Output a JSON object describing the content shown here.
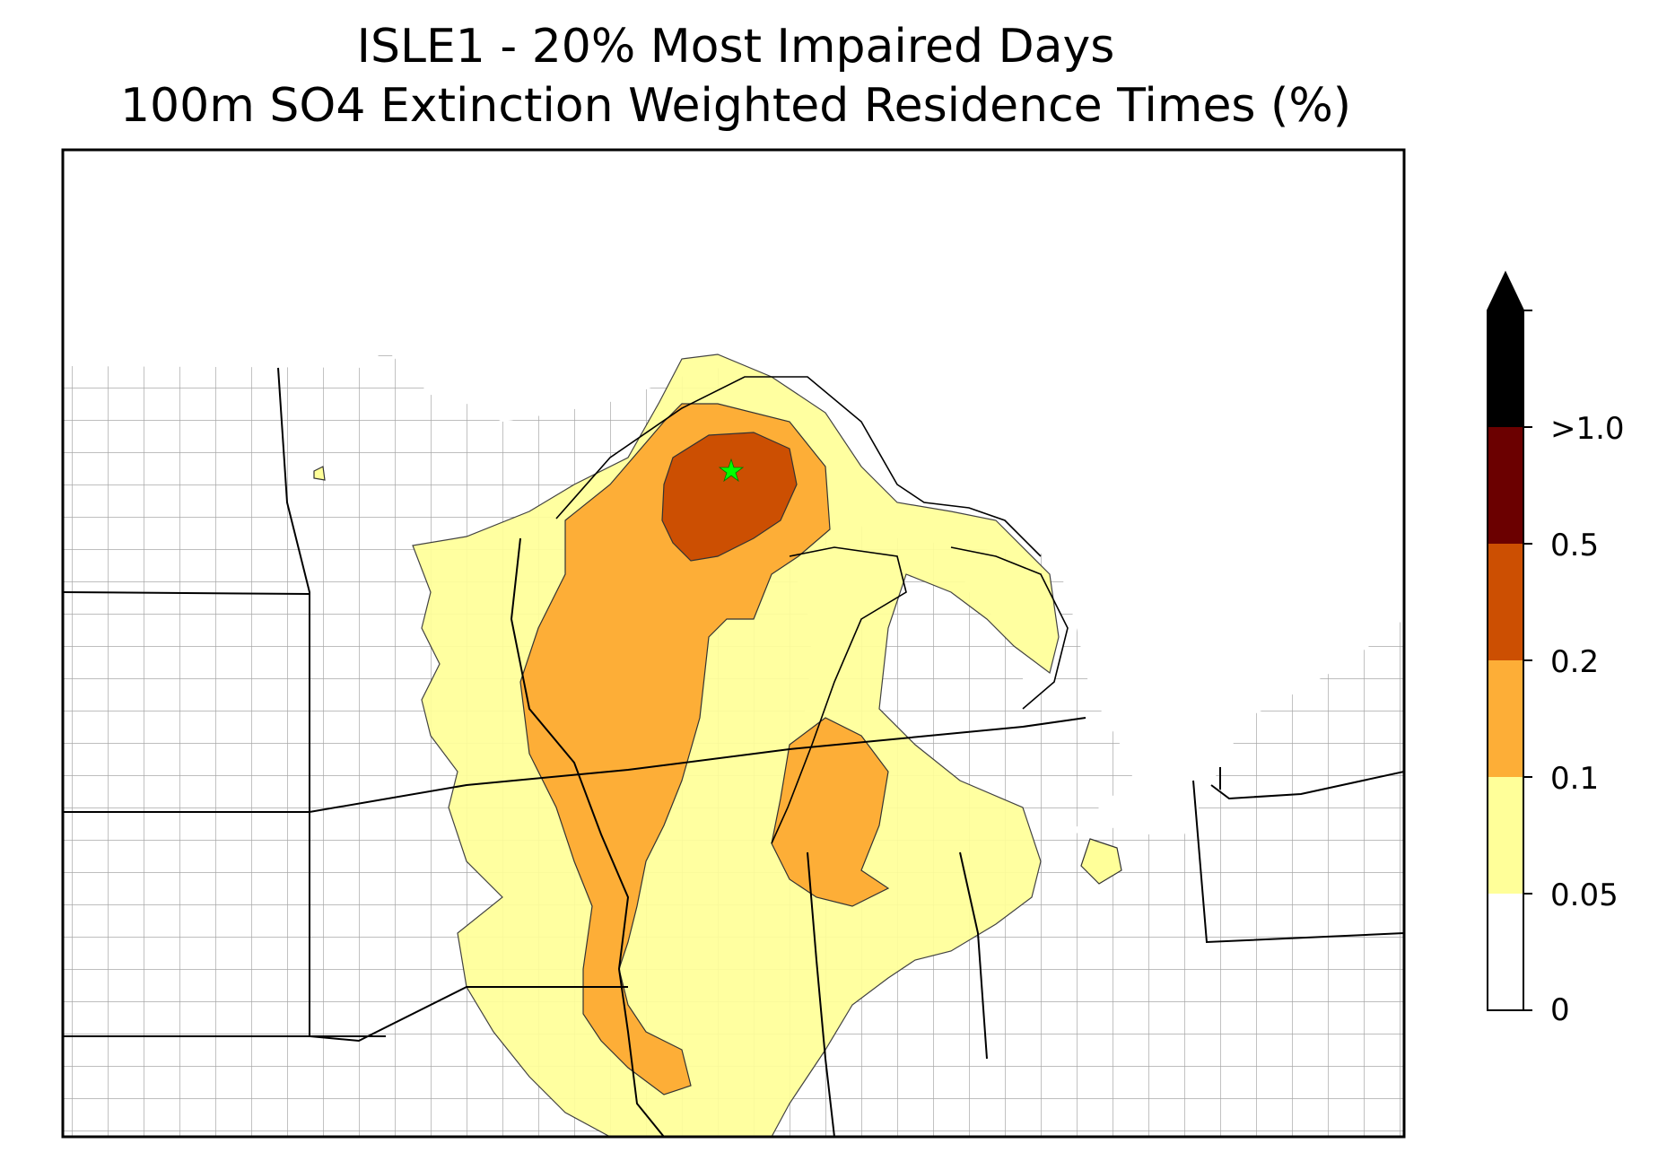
{
  "title_line1": "ISLE1 - 20% Most Impaired Days",
  "title_line2": "100m SO4 Extinction Weighted Residence Times (%)",
  "site_marker": {
    "icon": "star-icon",
    "color": "#00ff00"
  },
  "colorbar": {
    "extend": "max",
    "levels": [
      {
        "label": "0",
        "color": "#ffffff"
      },
      {
        "label": "0.05",
        "color": "#ffff99"
      },
      {
        "label": "0.1",
        "color": "#fdae37"
      },
      {
        "label": "0.2",
        "color": "#cc4f02"
      },
      {
        "label": "0.5",
        "color": "#6b0000"
      },
      {
        "label": ">1.0",
        "color": "#000000"
      }
    ]
  },
  "colors": {
    "very_low": "#ffff99",
    "low": "#fdae37",
    "mid": "#cc4f02",
    "county_lines": "#a0a0a0",
    "state_lines": "#000000"
  }
}
